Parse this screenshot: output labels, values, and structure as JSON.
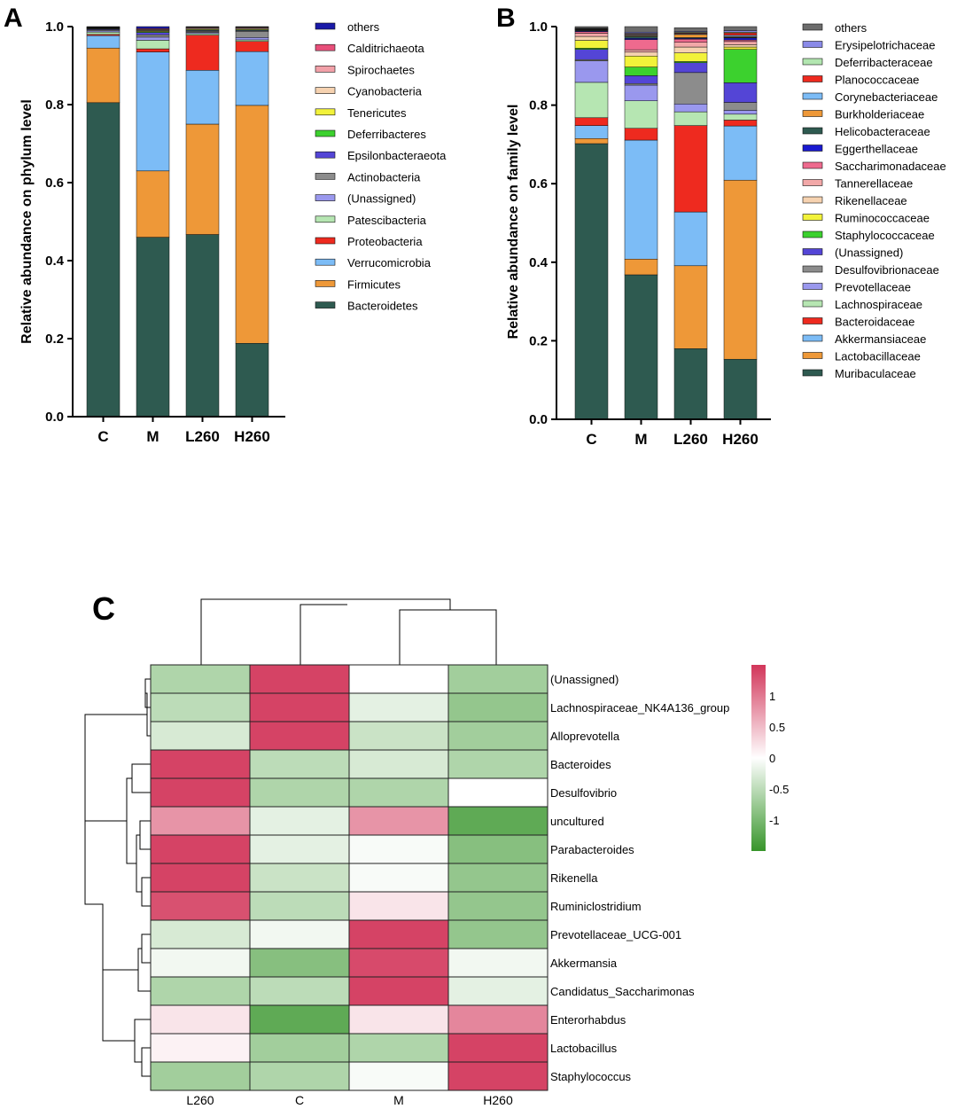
{
  "panels": {
    "a": {
      "label": "A"
    },
    "b": {
      "label": "B"
    },
    "c": {
      "label": "C"
    }
  },
  "colors": {
    "others_a": "#1a1aa8",
    "Calditrichaeota": "#e84f7a",
    "Spirochaetes": "#f2a0a8",
    "Cyanobacteria": "#f6d2b0",
    "Tenericutes": "#f2f23a",
    "Deferribacteres": "#3cd12e",
    "Epsilonbacteraeota": "#5445d6",
    "Actinobacteria": "#8c8c8c",
    "(Unassigned)_a": "#9a98ee",
    "Patescibacteria": "#b6e6b2",
    "Proteobacteria": "#ee2a1f",
    "Verrucomicrobia": "#7cbcf6",
    "Firmicutes": "#ee9838",
    "Bacteroidetes": "#2e5a50",
    "others": "#6c6c6c",
    "Erysipelotrichaceae": "#8a8ae8",
    "Deferribacteraceae": "#b2e6b0",
    "Planococcaceae": "#ee2a1f",
    "Corynebacteriaceae": "#7cbcf6",
    "Burkholderiaceae": "#ee9838",
    "Helicobacteraceae": "#2e5a50",
    "Eggerthellaceae": "#1a1ad0",
    "Saccharimonadaceae": "#ee6a8e",
    "Tannerellaceae": "#f2a8a8",
    "Rikenellaceae": "#f6d2b0",
    "Ruminococcaceae": "#f2f23a",
    "Staphylococcaceae": "#3cd12e",
    "(Unassigned)_b": "#5445d6",
    "Desulfovibrionaceae": "#8c8c8c",
    "Prevotellaceae": "#9a98ee",
    "Lachnospiraceae": "#b6e6b2",
    "Bacteroidaceae": "#ee2a1f",
    "Akkermansiaceae": "#7cbcf6",
    "Lactobacillaceae": "#ee9838",
    "Muribaculaceae": "#2e5a50",
    "heat_high": "#d2365a",
    "heat_mid": "#ffffff",
    "heat_low": "#37952a"
  },
  "chart_data": [
    {
      "panel": "A",
      "type": "bar",
      "stacked": true,
      "ylabel": "Relative abundance on phylum level",
      "xlabel": "",
      "ylim": [
        0,
        1.0
      ],
      "yticks": [
        "0.0",
        "0.2",
        "0.4",
        "0.6",
        "0.8",
        "1.0"
      ],
      "categories": [
        "C",
        "M",
        "L260",
        "H260"
      ],
      "series": [
        {
          "name": "Bacteroidetes",
          "key": "Bacteroidetes",
          "values": [
            0.805,
            0.46,
            0.467,
            0.188
          ]
        },
        {
          "name": "Firmicutes",
          "key": "Firmicutes",
          "values": [
            0.14,
            0.17,
            0.283,
            0.61
          ]
        },
        {
          "name": "Verrucomicrobia",
          "key": "Verrucomicrobia",
          "values": [
            0.032,
            0.305,
            0.138,
            0.138
          ]
        },
        {
          "name": "Proteobacteria",
          "key": "Proteobacteria",
          "values": [
            0.003,
            0.008,
            0.09,
            0.026
          ]
        },
        {
          "name": "Patescibacteria",
          "key": "Patescibacteria",
          "values": [
            0.006,
            0.022,
            0.004,
            0.004
          ]
        },
        {
          "name": "(Unassigned)",
          "key": "(Unassigned)_a",
          "values": [
            0.003,
            0.008,
            0.003,
            0.006
          ]
        },
        {
          "name": "Actinobacteria",
          "key": "Actinobacteria",
          "values": [
            0.003,
            0.006,
            0.003,
            0.016
          ]
        },
        {
          "name": "Epsilonbacteraeota",
          "key": "Epsilonbacteraeota",
          "values": [
            0.002,
            0.006,
            0.002,
            0.002
          ]
        },
        {
          "name": "Deferribacteres",
          "key": "Deferribacteres",
          "values": [
            0.001,
            0.002,
            0.002,
            0.002
          ]
        },
        {
          "name": "Tenericutes",
          "key": "Tenericutes",
          "values": [
            0.001,
            0.002,
            0.002,
            0.002
          ]
        },
        {
          "name": "Cyanobacteria",
          "key": "Cyanobacteria",
          "values": [
            0.001,
            0.002,
            0.002,
            0.002
          ]
        },
        {
          "name": "Spirochaetes",
          "key": "Spirochaetes",
          "values": [
            0.001,
            0.002,
            0.002,
            0.002
          ]
        },
        {
          "name": "Calditrichaeota",
          "key": "Calditrichaeota",
          "values": [
            0.001,
            0.002,
            0.001,
            0.001
          ]
        },
        {
          "name": "others",
          "key": "others_a",
          "values": [
            0.001,
            0.005,
            0.001,
            0.001
          ]
        }
      ]
    },
    {
      "panel": "B",
      "type": "bar",
      "stacked": true,
      "ylabel": "Relative abundance on family level",
      "xlabel": "",
      "ylim": [
        0,
        1.0
      ],
      "yticks": [
        "0.0",
        "0.2",
        "0.4",
        "0.6",
        "0.8",
        "1.0"
      ],
      "categories": [
        "C",
        "M",
        "L260",
        "H260"
      ],
      "series": [
        {
          "name": "Muribaculaceae",
          "key": "Muribaculaceae",
          "values": [
            0.702,
            0.368,
            0.18,
            0.153
          ]
        },
        {
          "name": "Lactobacillaceae",
          "key": "Lactobacillaceae",
          "values": [
            0.013,
            0.04,
            0.211,
            0.456
          ]
        },
        {
          "name": "Akkermansiaceae",
          "key": "Akkermansiaceae",
          "values": [
            0.033,
            0.303,
            0.137,
            0.138
          ]
        },
        {
          "name": "Bacteroidaceae",
          "key": "Bacteroidaceae",
          "values": [
            0.02,
            0.03,
            0.22,
            0.015
          ]
        },
        {
          "name": "Lachnospiraceae",
          "key": "Lachnospiraceae",
          "values": [
            0.09,
            0.07,
            0.035,
            0.015
          ]
        },
        {
          "name": "Prevotellaceae",
          "key": "Prevotellaceae",
          "values": [
            0.055,
            0.04,
            0.02,
            0.01
          ]
        },
        {
          "name": "Desulfovibrionaceae",
          "key": "Desulfovibrionaceae",
          "values": [
            0.003,
            0.004,
            0.08,
            0.02
          ]
        },
        {
          "name": "(Unassigned)",
          "key": "(Unassigned)_b",
          "values": [
            0.026,
            0.02,
            0.025,
            0.05
          ]
        },
        {
          "name": "Staphylococcaceae",
          "key": "Staphylococcaceae",
          "values": [
            0.003,
            0.022,
            0.003,
            0.085
          ]
        },
        {
          "name": "Ruminococcaceae",
          "key": "Ruminococcaceae",
          "values": [
            0.02,
            0.028,
            0.022,
            0.006
          ]
        },
        {
          "name": "Rikenellaceae",
          "key": "Rikenellaceae",
          "values": [
            0.01,
            0.01,
            0.015,
            0.006
          ]
        },
        {
          "name": "Tannerellaceae",
          "key": "Tannerellaceae",
          "values": [
            0.008,
            0.006,
            0.012,
            0.008
          ]
        },
        {
          "name": "Saccharimonadaceae",
          "key": "Saccharimonadaceae",
          "values": [
            0.004,
            0.026,
            0.008,
            0.004
          ]
        },
        {
          "name": "Eggerthellaceae",
          "key": "Eggerthellaceae",
          "values": [
            0.002,
            0.003,
            0.002,
            0.005
          ]
        },
        {
          "name": "Helicobacteraceae",
          "key": "Helicobacteraceae",
          "values": [
            0.002,
            0.005,
            0.002,
            0.002
          ]
        },
        {
          "name": "Burkholderiaceae",
          "key": "Burkholderiaceae",
          "values": [
            0.001,
            0.002,
            0.008,
            0.002
          ]
        },
        {
          "name": "Corynebacteriaceae",
          "key": "Corynebacteriaceae",
          "values": [
            0.001,
            0.002,
            0.002,
            0.003
          ]
        },
        {
          "name": "Planococcaceae",
          "key": "Planococcaceae",
          "values": [
            0.001,
            0.002,
            0.002,
            0.006
          ]
        },
        {
          "name": "Deferribacteraceae",
          "key": "Deferribacteraceae",
          "values": [
            0.001,
            0.002,
            0.002,
            0.002
          ]
        },
        {
          "name": "Erysipelotrichaceae",
          "key": "Erysipelotrichaceae",
          "values": [
            0.001,
            0.003,
            0.002,
            0.004
          ]
        },
        {
          "name": "others",
          "key": "others",
          "values": [
            0.004,
            0.014,
            0.009,
            0.01
          ]
        }
      ]
    },
    {
      "panel": "C",
      "type": "heatmap",
      "columns": [
        "L260",
        "C",
        "M",
        "H260"
      ],
      "rows": [
        "(Unassigned)",
        "Lachnospiraceae_NK4A136_group",
        "Alloprevotella",
        "Bacteroides",
        "Desulfovibrio",
        "uncultured",
        "Parabacteroides",
        "Rikenella",
        "Ruminiclostridium",
        "Prevotellaceae_UCG-001",
        "Akkermansia",
        "Candidatus_Saccharimonas",
        "Enterorhabdus",
        "Lactobacillus",
        "Staphylococcus"
      ],
      "values": [
        [
          -0.6,
          1.4,
          0.0,
          -0.7
        ],
        [
          -0.5,
          1.4,
          -0.2,
          -0.8
        ],
        [
          -0.3,
          1.4,
          -0.4,
          -0.7
        ],
        [
          1.4,
          -0.5,
          -0.3,
          -0.6
        ],
        [
          1.4,
          -0.6,
          -0.6,
          0.0
        ],
        [
          0.8,
          -0.2,
          0.8,
          -1.2
        ],
        [
          1.4,
          -0.2,
          -0.05,
          -0.9
        ],
        [
          1.4,
          -0.4,
          -0.05,
          -0.8
        ],
        [
          1.3,
          -0.5,
          0.2,
          -0.8
        ],
        [
          -0.3,
          -0.1,
          1.4,
          -0.8
        ],
        [
          -0.1,
          -0.9,
          1.35,
          -0.1
        ],
        [
          -0.6,
          -0.5,
          1.4,
          -0.2
        ],
        [
          0.2,
          -1.2,
          0.2,
          0.9
        ],
        [
          0.1,
          -0.7,
          -0.6,
          1.4
        ],
        [
          -0.7,
          -0.6,
          -0.05,
          1.4
        ]
      ],
      "colorbar": {
        "min": -1.5,
        "max": 1.5,
        "ticks": [
          "1",
          "0.5",
          "0",
          "-0.5",
          "-1"
        ],
        "tick_values": [
          1,
          0.5,
          0,
          -0.5,
          -1
        ]
      }
    }
  ]
}
